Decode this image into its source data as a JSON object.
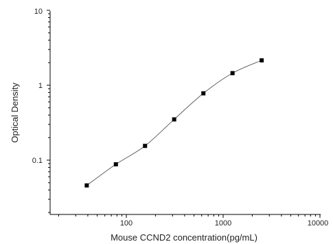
{
  "chart_data": {
    "type": "scatter",
    "title": "",
    "xlabel": "Mouse CCND2 concentration(pg/mL)",
    "ylabel": "Optical Density",
    "xscale": "log",
    "yscale": "log",
    "xlim": [
      10,
      10000
    ],
    "ylim": [
      0.01,
      10
    ],
    "x_ticks": [
      "100",
      "1000",
      "10000"
    ],
    "y_ticks": [
      "0.1",
      "1",
      "10"
    ],
    "grid": false,
    "legend": "none",
    "series": [
      {
        "marker": "square",
        "x": [
          39,
          78,
          156,
          312,
          625,
          1250,
          2500
        ],
        "y": [
          0.046,
          0.088,
          0.155,
          0.35,
          0.78,
          1.45,
          2.15
        ]
      }
    ],
    "fit_curve": true,
    "colors": {
      "marker": "#000000",
      "curve": "#555555",
      "axis": "#000000"
    }
  }
}
